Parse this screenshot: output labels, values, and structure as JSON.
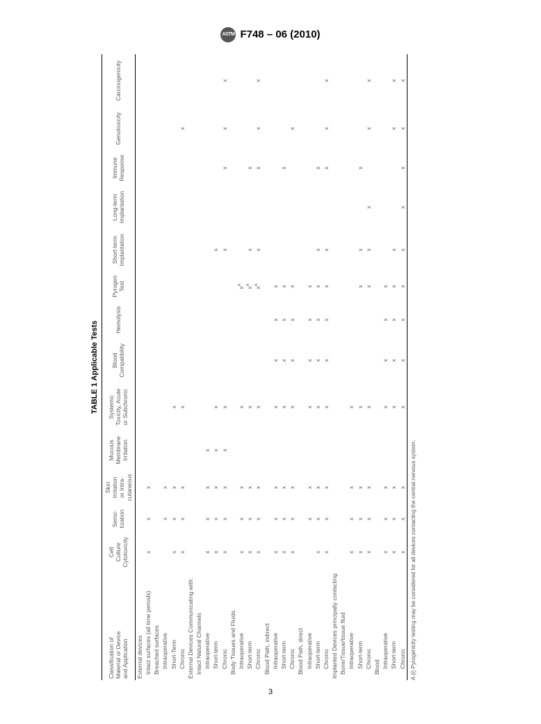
{
  "doc": {
    "logo_text": "ASTM",
    "number": "F748 – 06 (2010)",
    "page_number": "3"
  },
  "table": {
    "title": "TABLE 1 Applicable Tests",
    "mark": "x",
    "columns": [
      "Classification of\nMaterial or Device\nand Application",
      "Cell\nCulture\nCytotoxicity",
      "Sensi-\ntization",
      "Skin\nIrritation\nor Intra-\ncutaneous",
      "Mucous\nMembrane\nIrritation",
      "Systemic\nToxicity, Acute\nor Subchronic",
      "Blood\nCompatibility",
      "Hemolysis",
      "Pyrogen\nTest",
      "Short-term\nImplantation",
      "Long-term\nImplantation",
      "Immune\nResponse",
      "Genotoxicity",
      "Carcinogenicity"
    ],
    "rows": [
      {
        "label": "External devices",
        "indent": 0,
        "marks": [
          "",
          "",
          "",
          "",
          "",
          "",
          "",
          "",
          "",
          "",
          "",
          "",
          ""
        ]
      },
      {
        "label": "Intact surfaces (all time periods)",
        "indent": 1,
        "marks": [
          "x",
          "x",
          "x",
          "",
          "",
          "",
          "",
          "",
          "",
          "",
          "",
          "",
          ""
        ]
      },
      {
        "label": "Breached surfaces",
        "indent": 1,
        "marks": [
          "",
          "",
          "",
          "",
          "",
          "",
          "",
          "",
          "",
          "",
          "",
          "",
          ""
        ]
      },
      {
        "label": "Intraoperative",
        "indent": 2,
        "marks": [
          "",
          "x",
          "x",
          "",
          "",
          "",
          "",
          "",
          "",
          "",
          "",
          "",
          ""
        ]
      },
      {
        "label": "Short-Term",
        "indent": 2,
        "marks": [
          "x",
          "x",
          "x",
          "",
          "x",
          "",
          "",
          "",
          "",
          "",
          "",
          "",
          ""
        ]
      },
      {
        "label": "Chronic",
        "indent": 2,
        "marks": [
          "x",
          "x",
          "x",
          "",
          "x",
          "",
          "",
          "",
          "",
          "",
          "",
          "x",
          ""
        ]
      },
      {
        "label": "External Devices Communicating with:",
        "indent": 0,
        "marks": [
          "",
          "",
          "",
          "",
          "",
          "",
          "",
          "",
          "",
          "",
          "",
          "",
          ""
        ]
      },
      {
        "label": "Intact Natural Channels",
        "indent": 1,
        "marks": [
          "",
          "",
          "",
          "",
          "",
          "",
          "",
          "",
          "",
          "",
          "",
          "",
          ""
        ]
      },
      {
        "label": "Intraoperative",
        "indent": 2,
        "marks": [
          "x",
          "x",
          "x",
          "x",
          "",
          "",
          "",
          "",
          "",
          "",
          "",
          "",
          ""
        ]
      },
      {
        "label": "Short-term",
        "indent": 2,
        "marks": [
          "x",
          "x",
          "x",
          "x",
          "x",
          "",
          "",
          "",
          "x",
          "",
          "",
          "",
          ""
        ]
      },
      {
        "label": "Chronic",
        "indent": 2,
        "marks": [
          "x",
          "x",
          "x",
          "x",
          "x",
          "",
          "",
          "",
          "x",
          "",
          "x",
          "x",
          "x"
        ]
      },
      {
        "label": "Body Tissues and Fluids",
        "indent": 1,
        "marks": [
          "",
          "",
          "",
          "",
          "",
          "",
          "",
          "",
          "",
          "",
          "",
          "",
          ""
        ]
      },
      {
        "label": "Intraoperative",
        "indent": 2,
        "marks": [
          "x",
          "x",
          "x",
          "",
          "x",
          "",
          "",
          "xA",
          "",
          "",
          "",
          "",
          ""
        ]
      },
      {
        "label": "Short-term",
        "indent": 2,
        "marks": [
          "x",
          "x",
          "x",
          "",
          "x",
          "",
          "",
          "xA",
          "x",
          "",
          "x",
          "",
          ""
        ]
      },
      {
        "label": "Chronic",
        "indent": 2,
        "marks": [
          "x",
          "x",
          "x",
          "",
          "x",
          "",
          "",
          "xA",
          "x",
          "",
          "x",
          "x",
          "x"
        ]
      },
      {
        "label": "Blood Path, indirect",
        "indent": 1,
        "marks": [
          "",
          "",
          "",
          "",
          "",
          "",
          "",
          "",
          "",
          "",
          "",
          "",
          ""
        ]
      },
      {
        "label": "Intraoperative",
        "indent": 2,
        "marks": [
          "x",
          "x",
          "x",
          "",
          "x",
          "x",
          "x",
          "x",
          "",
          "",
          "",
          "",
          ""
        ]
      },
      {
        "label": "Short-term",
        "indent": 2,
        "marks": [
          "x",
          "x",
          "x",
          "",
          "x",
          "x",
          "x",
          "x",
          "",
          "",
          "x",
          "",
          ""
        ]
      },
      {
        "label": "Chronic",
        "indent": 2,
        "marks": [
          "x",
          "x",
          "x",
          "",
          "x",
          "x",
          "x",
          "x",
          "",
          "",
          "",
          "x",
          ""
        ]
      },
      {
        "label": "Blood Path, direct",
        "indent": 1,
        "marks": [
          "",
          "",
          "",
          "",
          "",
          "",
          "",
          "",
          "",
          "",
          "",
          "",
          ""
        ]
      },
      {
        "label": "Intraoperative",
        "indent": 2,
        "marks": [
          "",
          "x",
          "x",
          "",
          "x",
          "x",
          "x",
          "x",
          "",
          "",
          "",
          "",
          ""
        ]
      },
      {
        "label": "Short-term",
        "indent": 2,
        "marks": [
          "x",
          "x",
          "x",
          "",
          "x",
          "x",
          "x",
          "x",
          "x",
          "",
          "x",
          "",
          ""
        ]
      },
      {
        "label": "Chronic",
        "indent": 2,
        "marks": [
          "x",
          "x",
          "x",
          "",
          "x",
          "x",
          "x",
          "x",
          "x",
          "",
          "x",
          "x",
          "x"
        ]
      },
      {
        "label": "Implanted Devices principally contacting",
        "indent": 0,
        "marks": [
          "",
          "",
          "",
          "",
          "",
          "",
          "",
          "",
          "",
          "",
          "",
          "",
          ""
        ]
      },
      {
        "label": "Bone/Tissue/tissue fluid",
        "indent": 1,
        "marks": [
          "",
          "",
          "",
          "",
          "",
          "",
          "",
          "",
          "",
          "",
          "",
          "",
          ""
        ]
      },
      {
        "label": "Intraoperative",
        "indent": 2,
        "marks": [
          "x",
          "x",
          "x",
          "",
          "x",
          "",
          "",
          "",
          "",
          "",
          "",
          "",
          ""
        ]
      },
      {
        "label": "Short-term",
        "indent": 2,
        "marks": [
          "x",
          "x",
          "x",
          "",
          "x",
          "",
          "",
          "x",
          "x",
          "",
          "x",
          "",
          ""
        ]
      },
      {
        "label": "Chronic",
        "indent": 2,
        "marks": [
          "x",
          "x",
          "x",
          "",
          "x",
          "",
          "",
          "x",
          "x",
          "x",
          "",
          "x",
          "x"
        ]
      },
      {
        "label": "Blood",
        "indent": 1,
        "marks": [
          "",
          "",
          "",
          "",
          "",
          "",
          "",
          "",
          "",
          "",
          "",
          "",
          ""
        ]
      },
      {
        "label": "Intraoperative",
        "indent": 2,
        "marks": [
          "x",
          "x",
          "x",
          "",
          "x",
          "x",
          "x",
          "x",
          "",
          "",
          "",
          "",
          ""
        ]
      },
      {
        "label": "Short-term",
        "indent": 2,
        "marks": [
          "x",
          "x",
          "x",
          "",
          "x",
          "x",
          "x",
          "x",
          "x",
          "",
          "",
          "x",
          "x"
        ]
      },
      {
        "label": "Chronic",
        "indent": 2,
        "marks": [
          "x",
          "x",
          "x",
          "",
          "x",
          "x",
          "x",
          "x",
          "x",
          "x",
          "x",
          "x",
          "x"
        ]
      }
    ],
    "footnote": "A (i) Pyrogenicity testing may be considered for all devices contacting the central nervous system."
  }
}
